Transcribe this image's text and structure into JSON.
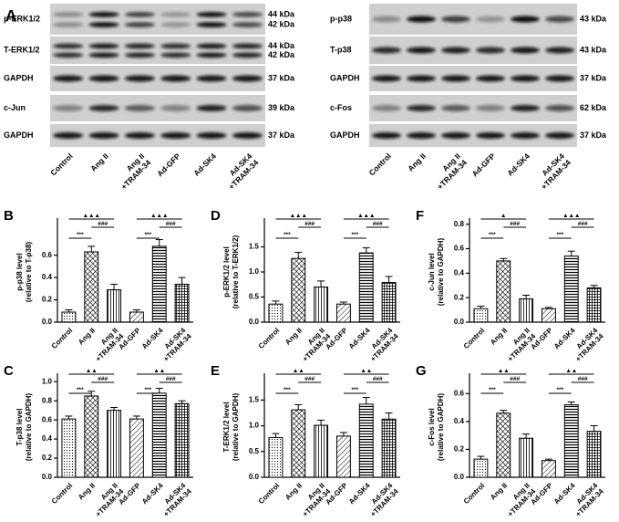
{
  "panel": "A",
  "blots": [
    {
      "rows": [
        {
          "label": "p-ERK1/2",
          "kda": [
            "44 kDa",
            "42 kDa"
          ]
        },
        {
          "label": "T-ERK1/2",
          "kda": [
            "44 kDa",
            "42 kDa"
          ]
        },
        {
          "label": "GAPDH",
          "kda": [
            "37 kDa"
          ]
        },
        {
          "label": "c-Jun",
          "kda": [
            "39 kDa"
          ]
        },
        {
          "label": "GAPDH",
          "kda": [
            "37 kDa"
          ]
        }
      ],
      "lanes": [
        [
          "Control"
        ],
        [
          "Ang II"
        ],
        [
          "Ang II",
          "+TRAM-34"
        ],
        [
          "Ad-GFP"
        ],
        [
          "Ad-SK4"
        ],
        [
          "Ad-SK4",
          "+TRAM-34"
        ]
      ]
    },
    {
      "rows": [
        {
          "label": "p-p38",
          "kda": [
            "43 kDa"
          ]
        },
        {
          "label": "T-p38",
          "kda": [
            "43 kDa"
          ]
        },
        {
          "label": "GAPDH",
          "kda": [
            "37 kDa"
          ]
        },
        {
          "label": "c-Fos",
          "kda": [
            "62 kDa"
          ]
        },
        {
          "label": "GAPDH",
          "kda": [
            "37 kDa"
          ]
        }
      ],
      "lanes": [
        [
          "Control"
        ],
        [
          "Ang II"
        ],
        [
          "Ang II",
          "+TRAM-34"
        ],
        [
          "Ad-GFP"
        ],
        [
          "Ad-SK4"
        ],
        [
          "Ad-SK4",
          "+TRAM-34"
        ]
      ]
    }
  ],
  "chart_data": [
    {
      "type": "bar",
      "panel": "B",
      "ylabel": [
        "p-p38 level",
        "(relative to T-p38)"
      ],
      "categories": [
        [
          "Control"
        ],
        [
          "Ang II"
        ],
        [
          "Ang II",
          "+TRAM-34"
        ],
        [
          "Ad-GFP"
        ],
        [
          "Ad-SK4"
        ],
        [
          "Ad-SK4",
          "+TRAM-34"
        ]
      ],
      "values": [
        0.09,
        0.63,
        0.29,
        0.09,
        0.68,
        0.34
      ],
      "errors": [
        0.02,
        0.05,
        0.05,
        0.02,
        0.06,
        0.06
      ],
      "ylim": [
        0,
        0.9
      ],
      "yticks": [
        {
          "value": 0,
          "label": "0.0"
        },
        0.2,
        0.4,
        0.6
      ],
      "annotations": [
        "***",
        "###",
        "▲▲▲",
        "***",
        "###",
        "▲▲▲"
      ],
      "bar_patterns": [
        "dots",
        "crosshatch",
        "vertical",
        "diagonal",
        "horizontal",
        "grid"
      ]
    },
    {
      "type": "bar",
      "panel": "D",
      "ylabel": [
        "p-ERK1/2 level",
        "(relative to T-ERK1/2)"
      ],
      "categories": [
        [
          "Control"
        ],
        [
          "Ang II"
        ],
        [
          "Ang II",
          "+TRAM-34"
        ],
        [
          "Ad-GFP"
        ],
        [
          "Ad-SK4"
        ],
        [
          "Ad-SK4",
          "+TRAM-34"
        ]
      ],
      "values": [
        0.36,
        1.27,
        0.7,
        0.36,
        1.38,
        0.79
      ],
      "errors": [
        0.06,
        0.12,
        0.12,
        0.04,
        0.1,
        0.12
      ],
      "ylim": [
        0,
        2.0
      ],
      "yticks": [
        {
          "value": 0,
          "label": "0.0"
        },
        0.5,
        {
          "value": 1,
          "label": "1.0"
        },
        1.5
      ],
      "annotations": [
        "***",
        "###",
        "▲▲▲",
        "***",
        "###",
        "▲▲▲"
      ],
      "bar_patterns": [
        "dots",
        "crosshatch",
        "vertical",
        "diagonal",
        "horizontal",
        "grid"
      ]
    },
    {
      "type": "bar",
      "panel": "F",
      "ylabel": [
        "c-Jun level",
        "(relative to GAPDH)"
      ],
      "categories": [
        [
          "Control"
        ],
        [
          "Ang II"
        ],
        [
          "Ang II",
          "+TRAM-34"
        ],
        [
          "Ad-GFP"
        ],
        [
          "Ad-SK4"
        ],
        [
          "Ad-SK4",
          "+TRAM-34"
        ]
      ],
      "values": [
        0.11,
        0.5,
        0.19,
        0.11,
        0.54,
        0.28
      ],
      "errors": [
        0.02,
        0.02,
        0.03,
        0.01,
        0.04,
        0.02
      ],
      "ylim": [
        0,
        0.82
      ],
      "yticks": [
        {
          "value": 0,
          "label": "0.0"
        },
        0.2,
        0.4,
        0.6,
        0.8
      ],
      "annotations": [
        "***",
        "###",
        "▲",
        "***",
        "###",
        "▲▲▲"
      ],
      "bar_patterns": [
        "dots",
        "crosshatch",
        "vertical",
        "diagonal",
        "horizontal",
        "grid"
      ]
    },
    {
      "type": "bar",
      "panel": "C",
      "ylabel": [
        "T-p38 level",
        "(relative to GAPDH)"
      ],
      "categories": [
        [
          "Control"
        ],
        [
          "Ang II"
        ],
        [
          "Ang II",
          "+TRAM-34"
        ],
        [
          "Ad-GFP"
        ],
        [
          "Ad-SK4"
        ],
        [
          "Ad-SK4",
          "+TRAM-34"
        ]
      ],
      "values": [
        0.61,
        0.85,
        0.7,
        0.61,
        0.88,
        0.77
      ],
      "errors": [
        0.03,
        0.05,
        0.03,
        0.03,
        0.05,
        0.03
      ],
      "ylim": [
        0,
        1.05
      ],
      "yticks": [
        {
          "value": 0,
          "label": "0.0"
        },
        0.2,
        0.4,
        0.6,
        0.8,
        {
          "value": 1,
          "label": "1.0"
        }
      ],
      "annotations": [
        "***",
        "###",
        "▲▲",
        "***",
        "###",
        "▲▲"
      ],
      "bar_patterns": [
        "dots",
        "crosshatch",
        "vertical",
        "diagonal",
        "horizontal",
        "grid"
      ]
    },
    {
      "type": "bar",
      "panel": "E",
      "ylabel": [
        "T-ERK1/2 level",
        "(relative to GAPDH)"
      ],
      "categories": [
        [
          "Control"
        ],
        [
          "Ang II"
        ],
        [
          "Ang II",
          "+TRAM-34"
        ],
        [
          "Ad-GFP"
        ],
        [
          "Ad-SK4"
        ],
        [
          "Ad-SK4",
          "+TRAM-34"
        ]
      ],
      "values": [
        0.77,
        1.31,
        1.01,
        0.8,
        1.42,
        1.13
      ],
      "errors": [
        0.08,
        0.1,
        0.1,
        0.07,
        0.13,
        0.12
      ],
      "ylim": [
        0,
        1.95
      ],
      "yticks": [
        {
          "value": 0,
          "label": "0.0"
        },
        0.5,
        {
          "value": 1,
          "label": "1.0"
        },
        1.5
      ],
      "annotations": [
        "***",
        "###",
        "▲▲",
        "***",
        "###",
        "▲▲"
      ],
      "bar_patterns": [
        "dots",
        "crosshatch",
        "vertical",
        "diagonal",
        "horizontal",
        "grid"
      ]
    },
    {
      "type": "bar",
      "panel": "G",
      "ylabel": [
        "c-Fos level",
        "(relative to GAPDH)"
      ],
      "categories": [
        [
          "Control"
        ],
        [
          "Ang II"
        ],
        [
          "Ang II",
          "+TRAM-34"
        ],
        [
          "Ad-GFP"
        ],
        [
          "Ad-SK4"
        ],
        [
          "Ad-SK4",
          "+TRAM-34"
        ]
      ],
      "values": [
        0.13,
        0.46,
        0.28,
        0.12,
        0.52,
        0.33
      ],
      "errors": [
        0.02,
        0.02,
        0.03,
        0.01,
        0.02,
        0.04
      ],
      "ylim": [
        0,
        0.72
      ],
      "yticks": [
        {
          "value": 0,
          "label": "0.0"
        },
        0.2,
        0.4,
        0.6
      ],
      "annotations": [
        "***",
        "###",
        "▲▲",
        "***",
        "###",
        "▲▲"
      ],
      "bar_patterns": [
        "dots",
        "crosshatch",
        "vertical",
        "diagonal",
        "horizontal",
        "grid"
      ]
    }
  ]
}
